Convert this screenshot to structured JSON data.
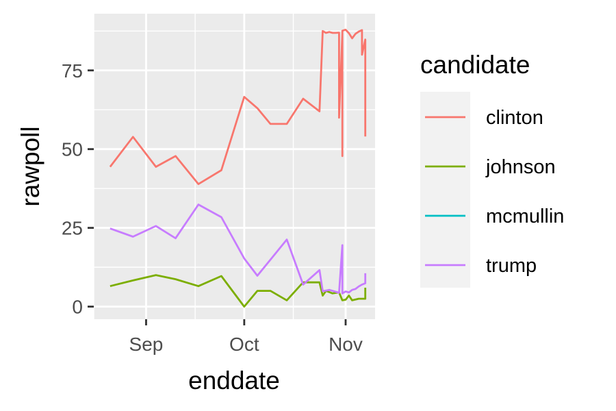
{
  "chart_data": {
    "type": "line",
    "xlabel": "enddate",
    "ylabel": "rawpoll",
    "x_ticks": [
      "Sep",
      "Oct",
      "Nov"
    ],
    "y_ticks": [
      0,
      25,
      50,
      75
    ],
    "xlim": [
      "2016-08-16",
      "2016-11-10"
    ],
    "ylim": [
      -4,
      93
    ],
    "panel_background": "#ebebeb",
    "grid": true,
    "legend": {
      "title": "candidate",
      "position": "right"
    },
    "series": [
      {
        "name": "clinton",
        "color": "#F8766D",
        "points": [
          [
            "2016-08-21",
            44.4
          ],
          [
            "2016-08-28",
            53.9
          ],
          [
            "2016-09-04",
            44.4
          ],
          [
            "2016-09-10",
            47.8
          ],
          [
            "2016-09-17",
            38.9
          ],
          [
            "2016-09-24",
            43.3
          ],
          [
            "2016-10-01",
            66.6
          ],
          [
            "2016-10-05",
            63.0
          ],
          [
            "2016-10-09",
            58.0
          ],
          [
            "2016-10-14",
            58.0
          ],
          [
            "2016-10-19",
            66.0
          ],
          [
            "2016-10-24",
            62.0
          ],
          [
            "2016-10-25",
            87.5
          ],
          [
            "2016-10-26",
            86.9
          ],
          [
            "2016-10-27",
            87.2
          ],
          [
            "2016-10-28",
            86.9
          ],
          [
            "2016-10-29",
            86.9
          ],
          [
            "2016-10-30",
            87.0
          ],
          [
            "2016-10-30",
            60.0
          ],
          [
            "2016-10-31",
            86.6
          ],
          [
            "2016-10-31",
            47.8
          ],
          [
            "2016-10-31",
            87.6
          ],
          [
            "2016-11-01",
            87.9
          ],
          [
            "2016-11-02",
            86.8
          ],
          [
            "2016-11-03",
            85.2
          ],
          [
            "2016-11-04",
            86.6
          ],
          [
            "2016-11-05",
            87.3
          ],
          [
            "2016-11-06",
            87.8
          ],
          [
            "2016-11-06",
            80.0
          ],
          [
            "2016-11-07",
            84.8
          ],
          [
            "2016-11-07",
            54.0
          ]
        ]
      },
      {
        "name": "johnson",
        "color": "#7CAE00",
        "points": [
          [
            "2016-08-21",
            6.5
          ],
          [
            "2016-08-28",
            8.3
          ],
          [
            "2016-09-04",
            10.0
          ],
          [
            "2016-09-10",
            8.7
          ],
          [
            "2016-09-17",
            6.5
          ],
          [
            "2016-09-24",
            9.7
          ],
          [
            "2016-10-01",
            0.0
          ],
          [
            "2016-10-05",
            5.0
          ],
          [
            "2016-10-09",
            5.0
          ],
          [
            "2016-10-14",
            2.0
          ],
          [
            "2016-10-19",
            7.7
          ],
          [
            "2016-10-24",
            7.7
          ],
          [
            "2016-10-25",
            3.5
          ],
          [
            "2016-10-26",
            5.0
          ],
          [
            "2016-10-28",
            4.2
          ],
          [
            "2016-10-30",
            4.5
          ],
          [
            "2016-10-31",
            2.0
          ],
          [
            "2016-11-01",
            2.2
          ],
          [
            "2016-11-02",
            3.5
          ],
          [
            "2016-11-03",
            2.0
          ],
          [
            "2016-11-05",
            2.5
          ],
          [
            "2016-11-07",
            2.5
          ],
          [
            "2016-11-07",
            6.0
          ]
        ]
      },
      {
        "name": "mcmullin",
        "color": "#00BFC4",
        "points": []
      },
      {
        "name": "trump",
        "color": "#C77CFF",
        "points": [
          [
            "2016-08-21",
            24.8
          ],
          [
            "2016-08-28",
            22.2
          ],
          [
            "2016-09-04",
            25.6
          ],
          [
            "2016-09-10",
            21.7
          ],
          [
            "2016-09-17",
            32.4
          ],
          [
            "2016-09-24",
            28.4
          ],
          [
            "2016-10-01",
            15.3
          ],
          [
            "2016-10-05",
            9.8
          ],
          [
            "2016-10-09",
            14.9
          ],
          [
            "2016-10-14",
            21.3
          ],
          [
            "2016-10-19",
            7.0
          ],
          [
            "2016-10-24",
            11.6
          ],
          [
            "2016-10-25",
            4.9
          ],
          [
            "2016-10-27",
            5.3
          ],
          [
            "2016-10-30",
            4.4
          ],
          [
            "2016-10-31",
            19.5
          ],
          [
            "2016-10-31",
            4.2
          ],
          [
            "2016-11-01",
            4.8
          ],
          [
            "2016-11-02",
            4.5
          ],
          [
            "2016-11-03",
            5.3
          ],
          [
            "2016-11-04",
            5.6
          ],
          [
            "2016-11-05",
            6.4
          ],
          [
            "2016-11-06",
            7.0
          ],
          [
            "2016-11-07",
            7.4
          ],
          [
            "2016-11-07",
            10.6
          ]
        ]
      }
    ]
  }
}
